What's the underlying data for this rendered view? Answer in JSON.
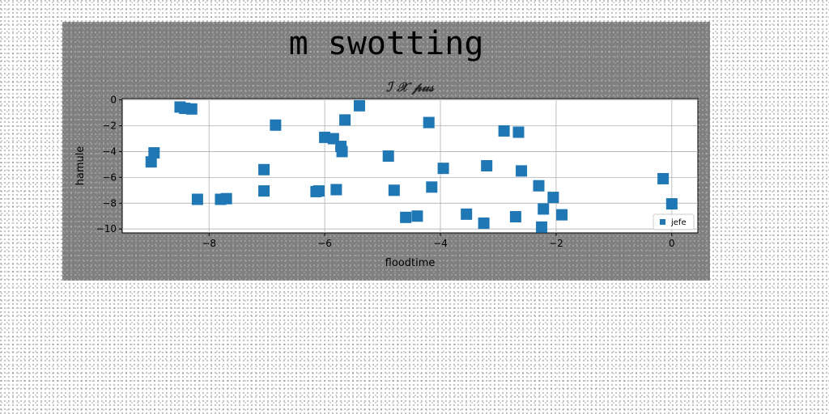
{
  "figure_title": "m swotting",
  "chart_data": {
    "type": "scatter",
    "title": "ℐ 𝒳 𝓅𝓊𝓈",
    "xlabel": "floodtime",
    "ylabel": "hamule",
    "xlim": [
      -9.5,
      0.45
    ],
    "ylim": [
      -10.3,
      0.1
    ],
    "xticks": [
      -8,
      -6,
      -4,
      -2,
      0
    ],
    "yticks": [
      0,
      -2,
      -4,
      -6,
      -8,
      -10
    ],
    "grid": true,
    "legend_position": "lower-right",
    "series": [
      {
        "name": "jefe",
        "color": "#1f77b4",
        "marker": "square",
        "points": [
          {
            "x": -9.0,
            "y": -4.8
          },
          {
            "x": -8.95,
            "y": -4.1
          },
          {
            "x": -8.5,
            "y": -0.55
          },
          {
            "x": -8.42,
            "y": -0.65
          },
          {
            "x": -8.3,
            "y": -0.7
          },
          {
            "x": -8.2,
            "y": -7.7
          },
          {
            "x": -7.8,
            "y": -7.7
          },
          {
            "x": -7.7,
            "y": -7.65
          },
          {
            "x": -7.05,
            "y": -5.4
          },
          {
            "x": -7.05,
            "y": -7.05
          },
          {
            "x": -6.85,
            "y": -1.95
          },
          {
            "x": -6.15,
            "y": -7.1
          },
          {
            "x": -6.1,
            "y": -7.05
          },
          {
            "x": -6.0,
            "y": -2.9
          },
          {
            "x": -5.85,
            "y": -3.0
          },
          {
            "x": -5.8,
            "y": -6.95
          },
          {
            "x": -5.72,
            "y": -3.6
          },
          {
            "x": -5.7,
            "y": -4.0
          },
          {
            "x": -5.65,
            "y": -1.55
          },
          {
            "x": -5.4,
            "y": -0.45
          },
          {
            "x": -4.9,
            "y": -4.35
          },
          {
            "x": -4.8,
            "y": -7.0
          },
          {
            "x": -4.6,
            "y": -9.1
          },
          {
            "x": -4.4,
            "y": -9.0
          },
          {
            "x": -4.2,
            "y": -1.75
          },
          {
            "x": -4.15,
            "y": -6.75
          },
          {
            "x": -3.95,
            "y": -5.3
          },
          {
            "x": -3.55,
            "y": -8.85
          },
          {
            "x": -3.25,
            "y": -9.55
          },
          {
            "x": -3.2,
            "y": -5.1
          },
          {
            "x": -2.9,
            "y": -2.4
          },
          {
            "x": -2.7,
            "y": -9.05
          },
          {
            "x": -2.65,
            "y": -2.5
          },
          {
            "x": -2.6,
            "y": -5.5
          },
          {
            "x": -2.3,
            "y": -6.65
          },
          {
            "x": -2.25,
            "y": -9.85
          },
          {
            "x": -2.22,
            "y": -8.45
          },
          {
            "x": -2.05,
            "y": -7.55
          },
          {
            "x": -1.9,
            "y": -8.9
          },
          {
            "x": -0.15,
            "y": -6.1
          },
          {
            "x": 0.0,
            "y": -8.05
          }
        ]
      }
    ]
  }
}
